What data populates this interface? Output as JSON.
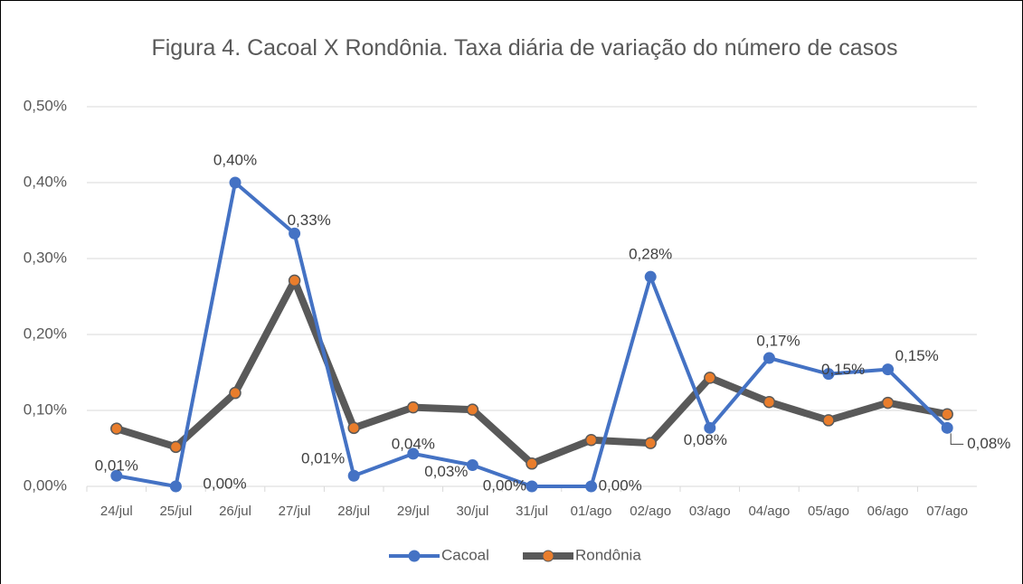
{
  "chart_data": {
    "type": "line",
    "title": "Figura 4. Cacoal X Rondônia. Taxa diária de variação do número de casos",
    "categories": [
      "24/jul",
      "25/jul",
      "26/jul",
      "27/jul",
      "28/jul",
      "29/jul",
      "30/jul",
      "31/jul",
      "01/ago",
      "02/ago",
      "03/ago",
      "04/ago",
      "05/ago",
      "06/ago",
      "07/ago"
    ],
    "series": [
      {
        "name": "Cacoal",
        "color": "#4472c4",
        "values": [
          0.014,
          0.0,
          0.4,
          0.333,
          0.014,
          0.043,
          0.028,
          0.0,
          0.0,
          0.276,
          0.077,
          0.169,
          0.148,
          0.154,
          0.077
        ],
        "value_labels": [
          "0,01%",
          "0,00%",
          "0,40%",
          "0,33%",
          "0,01%",
          "0,04%",
          "0,03%",
          "0,00%",
          "0,00%",
          "0,28%",
          "0,08%",
          "0,17%",
          "0,15%",
          "0,15%",
          "0,08%"
        ]
      },
      {
        "name": "Rondônia",
        "color": "#595959",
        "values": [
          0.076,
          0.052,
          0.123,
          0.271,
          0.077,
          0.104,
          0.101,
          0.03,
          0.061,
          0.057,
          0.143,
          0.111,
          0.087,
          0.11,
          0.095
        ]
      }
    ],
    "ylim": [
      0,
      0.5
    ],
    "yticks": [
      {
        "value": 0,
        "label": "0,00%"
      },
      {
        "value": 0.1,
        "label": "0,10%"
      },
      {
        "value": 0.2,
        "label": "0,20%"
      },
      {
        "value": 0.3,
        "label": "0,30%"
      },
      {
        "value": 0.4,
        "label": "0,40%"
      },
      {
        "value": 0.5,
        "label": "0,50%"
      }
    ],
    "grid": true,
    "legend": "bottom"
  }
}
